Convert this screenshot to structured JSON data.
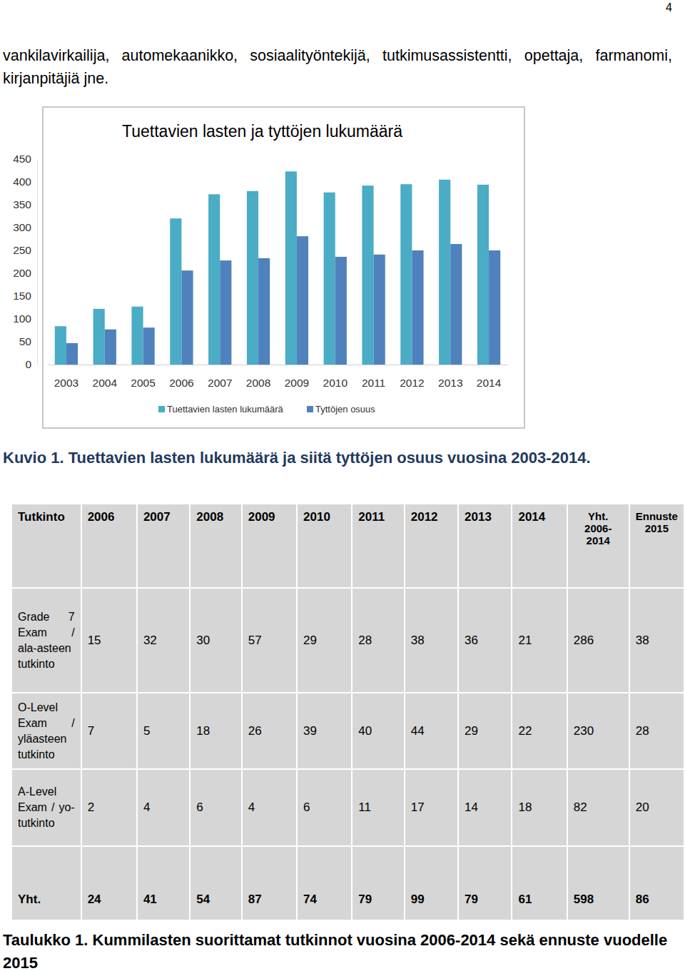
{
  "page_number": "4",
  "intro_text": "vankilavirkailija, automekaanikko, sosiaalityöntekijä, tutkimusassistentti, opettaja, farmanomi, kirjanpitäjiä jne.",
  "chart_data": {
    "type": "bar",
    "title": "Tuettavien lasten ja tyttöjen lukumäärä",
    "categories": [
      2003,
      2004,
      2005,
      2006,
      2007,
      2008,
      2009,
      2010,
      2011,
      2012,
      2013,
      2014
    ],
    "series": [
      {
        "name": "Tuettavien lasten lukumäärä",
        "color": "#4bacc6",
        "values": [
          84,
          122,
          127,
          320,
          373,
          380,
          423,
          377,
          392,
          395,
          405,
          394
        ]
      },
      {
        "name": "Tyttöjen osuus",
        "color": "#4f81bd",
        "values": [
          47,
          77,
          81,
          206,
          228,
          233,
          281,
          236,
          241,
          250,
          264,
          250
        ]
      }
    ],
    "ylim": [
      0,
      450
    ],
    "yticks": [
      0,
      50,
      100,
      150,
      200,
      250,
      300,
      350,
      400,
      450
    ],
    "grid": false,
    "legend": "bottom"
  },
  "figure_caption": "Kuvio 1. Tuettavien lasten lukumäärä ja siitä tyttöjen osuus vuosina 2003-2014.",
  "table": {
    "header": [
      "Tutkinto",
      "2006",
      "2007",
      "2008",
      "2009",
      "2010",
      "2011",
      "2012",
      "2013",
      "2014",
      "Yht. 2006-2014",
      "Ennuste 2015"
    ],
    "rows": [
      {
        "label": "Grade 7 Exam / ala-asteen tutkinto",
        "values": [
          15,
          32,
          30,
          57,
          29,
          28,
          38,
          36,
          21,
          286,
          38
        ]
      },
      {
        "label": "O-Level Exam / yläasteen tutkinto",
        "values": [
          7,
          5,
          18,
          26,
          39,
          40,
          44,
          29,
          22,
          230,
          28
        ]
      },
      {
        "label": "A-Level Exam / yo-tutkinto",
        "values": [
          2,
          4,
          6,
          4,
          6,
          11,
          17,
          14,
          18,
          82,
          20
        ]
      }
    ],
    "total": {
      "label": "Yht.",
      "values": [
        24,
        41,
        54,
        87,
        74,
        79,
        99,
        79,
        61,
        598,
        86
      ]
    }
  },
  "table_caption": "Taulukko 1. Kummilasten suorittamat tutkinnot vuosina 2006-2014 sekä ennuste vuodelle 2015"
}
